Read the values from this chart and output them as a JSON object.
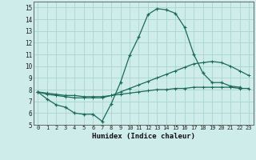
{
  "xlabel": "Humidex (Indice chaleur)",
  "background_color": "#cdecea",
  "grid_color": "#a8d5d0",
  "line_color": "#1a6b5a",
  "xlim": [
    -0.5,
    23.5
  ],
  "ylim": [
    5,
    15.5
  ],
  "xticks": [
    0,
    1,
    2,
    3,
    4,
    5,
    6,
    7,
    8,
    9,
    10,
    11,
    12,
    13,
    14,
    15,
    16,
    17,
    18,
    19,
    20,
    21,
    22,
    23
  ],
  "yticks": [
    5,
    6,
    7,
    8,
    9,
    10,
    11,
    12,
    13,
    14,
    15
  ],
  "line1_x": [
    0,
    1,
    2,
    3,
    4,
    5,
    6,
    7,
    8,
    9,
    10,
    11,
    12,
    13,
    14,
    15,
    16,
    17,
    18,
    19,
    20,
    21,
    22
  ],
  "line1_y": [
    7.8,
    7.2,
    6.7,
    6.5,
    6.0,
    5.9,
    5.9,
    5.3,
    6.8,
    8.6,
    10.9,
    12.5,
    14.4,
    14.9,
    14.8,
    14.5,
    13.3,
    11.0,
    9.4,
    8.6,
    8.6,
    8.3,
    8.2
  ],
  "line2_x": [
    0,
    1,
    2,
    3,
    4,
    5,
    6,
    7,
    8,
    9,
    10,
    11,
    12,
    13,
    14,
    15,
    16,
    17,
    18,
    19,
    20,
    21,
    22,
    23
  ],
  "line2_y": [
    7.8,
    7.6,
    7.5,
    7.4,
    7.3,
    7.3,
    7.3,
    7.3,
    7.5,
    7.8,
    8.1,
    8.4,
    8.7,
    9.0,
    9.3,
    9.6,
    9.9,
    10.2,
    10.3,
    10.4,
    10.3,
    10.0,
    9.6,
    9.2
  ],
  "line3_x": [
    0,
    1,
    2,
    3,
    4,
    5,
    6,
    7,
    8,
    9,
    10,
    11,
    12,
    13,
    14,
    15,
    16,
    17,
    18,
    19,
    20,
    21,
    22,
    23
  ],
  "line3_y": [
    7.8,
    7.7,
    7.6,
    7.5,
    7.5,
    7.4,
    7.4,
    7.4,
    7.5,
    7.6,
    7.7,
    7.8,
    7.9,
    8.0,
    8.0,
    8.1,
    8.1,
    8.2,
    8.2,
    8.2,
    8.2,
    8.2,
    8.1,
    8.1
  ]
}
